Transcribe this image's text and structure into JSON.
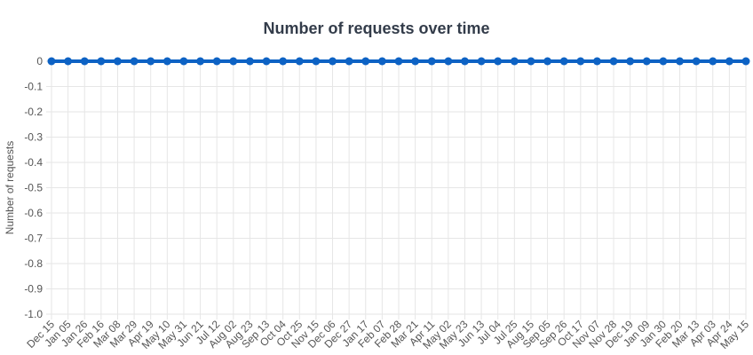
{
  "chart_data": {
    "type": "line",
    "title": "Number of requests over time",
    "xlabel": "",
    "ylabel": "Number of requests",
    "ylim": [
      -1.0,
      0
    ],
    "y_ticks": [
      "0",
      "-0.1",
      "-0.2",
      "-0.3",
      "-0.4",
      "-0.5",
      "-0.6",
      "-0.7",
      "-0.8",
      "-0.9",
      "-1.0"
    ],
    "grid": true,
    "legend": "none",
    "categories": [
      "Dec 15",
      "Jan 05",
      "Jan 26",
      "Feb 16",
      "Mar 08",
      "Mar 29",
      "Apr 19",
      "May 10",
      "May 31",
      "Jun 21",
      "Jul 12",
      "Aug 02",
      "Aug 23",
      "Sep 13",
      "Oct 04",
      "Oct 25",
      "Nov 15",
      "Dec 06",
      "Dec 27",
      "Jan 17",
      "Feb 07",
      "Feb 28",
      "Mar 21",
      "Apr 11",
      "May 02",
      "May 23",
      "Jun 13",
      "Jul 04",
      "Jul 25",
      "Aug 15",
      "Sep 05",
      "Sep 26",
      "Oct 17",
      "Nov 07",
      "Nov 28",
      "Dec 19",
      "Jan 09",
      "Jan 30",
      "Feb 20",
      "Mar 13",
      "Apr 03",
      "Apr 24",
      "May 15"
    ],
    "series": [
      {
        "color": "#0d62c4",
        "value": 0
      }
    ]
  }
}
